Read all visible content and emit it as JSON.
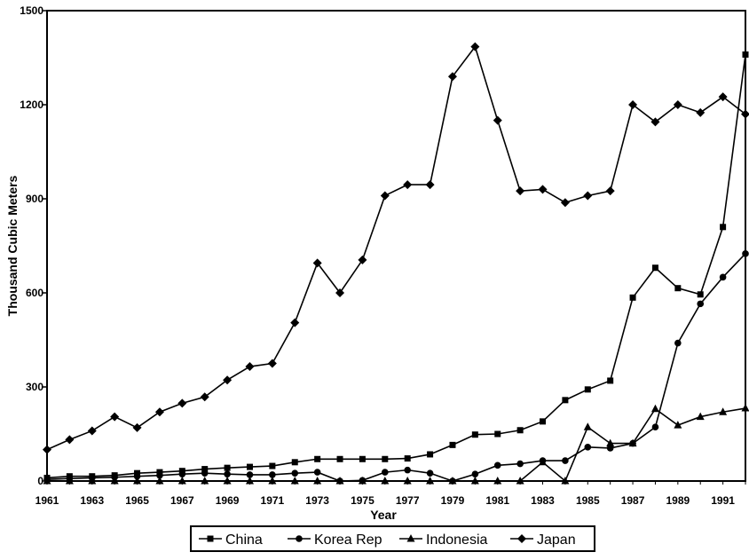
{
  "chart_data": {
    "type": "line",
    "title": "",
    "xlabel": "Year",
    "ylabel": "Thousand Cubic Meters",
    "xlim": [
      1961,
      1992
    ],
    "ylim": [
      0,
      1500
    ],
    "y_ticks": [
      0,
      300,
      600,
      900,
      1200,
      1500
    ],
    "x_ticks": [
      1961,
      1963,
      1965,
      1967,
      1969,
      1971,
      1973,
      1975,
      1977,
      1979,
      1981,
      1983,
      1985,
      1987,
      1989,
      1991
    ],
    "grid": false,
    "legend": "bottom",
    "x": [
      1961,
      1962,
      1963,
      1964,
      1965,
      1966,
      1967,
      1968,
      1969,
      1970,
      1971,
      1972,
      1973,
      1974,
      1975,
      1976,
      1977,
      1978,
      1979,
      1980,
      1981,
      1982,
      1983,
      1984,
      1985,
      1986,
      1987,
      1988,
      1989,
      1990,
      1991,
      1992
    ],
    "series": [
      {
        "name": "China",
        "marker": "square",
        "values": [
          10,
          15,
          15,
          18,
          25,
          28,
          32,
          38,
          42,
          45,
          48,
          60,
          70,
          70,
          70,
          70,
          72,
          85,
          115,
          148,
          150,
          162,
          190,
          258,
          292,
          320,
          585,
          680,
          615,
          595,
          810,
          1360
        ]
      },
      {
        "name": "Korea Rep",
        "marker": "circle",
        "values": [
          5,
          8,
          10,
          12,
          15,
          18,
          22,
          25,
          22,
          20,
          20,
          25,
          28,
          0,
          2,
          28,
          35,
          25,
          0,
          22,
          50,
          55,
          65,
          65,
          108,
          105,
          120,
          172,
          440,
          565,
          650,
          725
        ]
      },
      {
        "name": "Indonesia",
        "marker": "triangle",
        "values": [
          0,
          0,
          0,
          0,
          0,
          0,
          0,
          0,
          0,
          0,
          0,
          0,
          0,
          0,
          0,
          0,
          0,
          0,
          0,
          0,
          0,
          0,
          60,
          0,
          172,
          120,
          120,
          230,
          178,
          205,
          220,
          232
        ]
      },
      {
        "name": "Japan",
        "marker": "diamond",
        "values": [
          100,
          132,
          160,
          205,
          170,
          220,
          248,
          268,
          322,
          365,
          375,
          505,
          695,
          600,
          705,
          910,
          945,
          945,
          1290,
          1385,
          1150,
          925,
          930,
          888,
          910,
          925,
          1200,
          1145,
          1200,
          1175,
          1225,
          1170
        ]
      }
    ]
  }
}
